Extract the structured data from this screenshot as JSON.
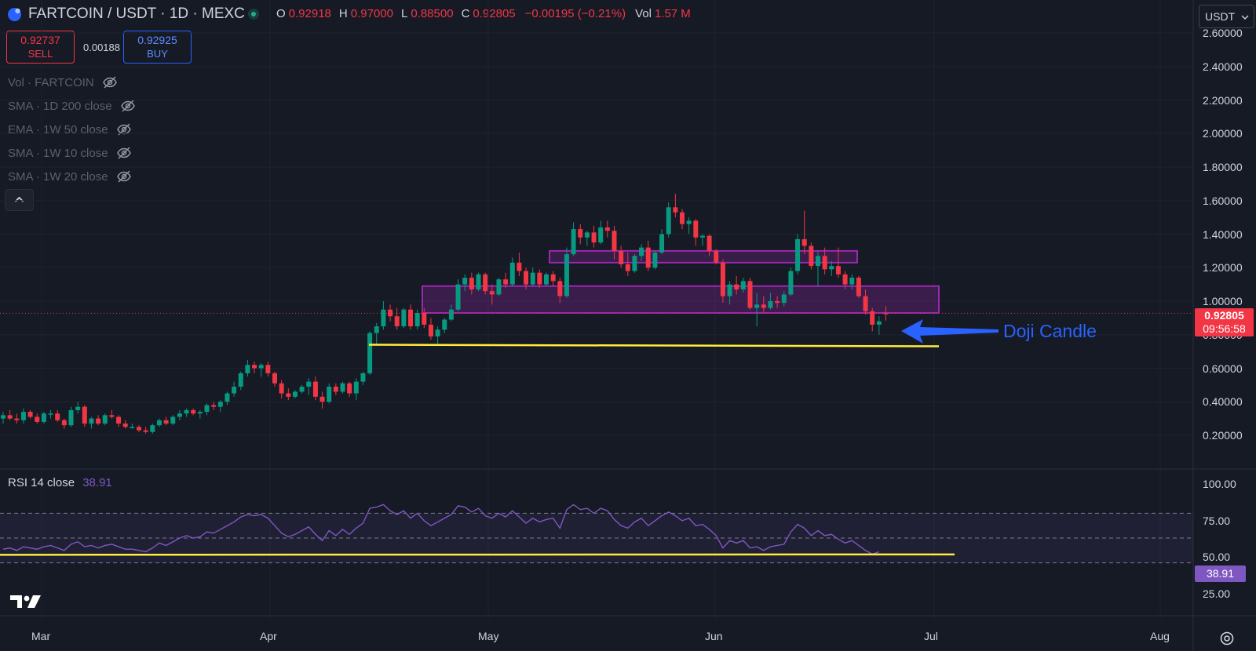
{
  "header": {
    "symbol": "FARTCOIN / USDT · 1D · MEXC",
    "ohlc": {
      "o_label": "O",
      "o": "0.92918",
      "h_label": "H",
      "h": "0.97000",
      "l_label": "L",
      "l": "0.88500",
      "c_label": "C",
      "c": "0.92805",
      "change": "−0.00195 (−0.21%)",
      "vol_label": "Vol",
      "vol": "1.57 M"
    }
  },
  "trade": {
    "sell_price": "0.92737",
    "sell_label": "SELL",
    "spread": "0.00188",
    "buy_price": "0.92925",
    "buy_label": "BUY"
  },
  "indicators": [
    {
      "label": "Vol · FARTCOIN"
    },
    {
      "label": "SMA · 1D 200 close"
    },
    {
      "label": "EMA · 1W 50 close"
    },
    {
      "label": "SMA · 1W 10 close"
    },
    {
      "label": "SMA · 1W 20 close"
    }
  ],
  "currency_selector": "USDT",
  "price_axis": [
    "2.60000",
    "2.40000",
    "2.20000",
    "2.00000",
    "1.80000",
    "1.60000",
    "1.40000",
    "1.20000",
    "1.00000",
    "0.80000",
    "0.60000",
    "0.40000",
    "0.20000"
  ],
  "current_price": {
    "value": "0.92805",
    "countdown": "09:56:58",
    "color": "#f23645"
  },
  "rsi": {
    "title": "RSI 14 close",
    "value": "38.91",
    "axis": [
      "100.00",
      "75.00",
      "50.00",
      "25.00"
    ],
    "color": "#7e57c2"
  },
  "time_axis": [
    "Mar",
    "Apr",
    "May",
    "Jun",
    "Jul",
    "Aug"
  ],
  "annotation": {
    "text": "Doji Candle",
    "color": "#2962ff"
  },
  "colors": {
    "up": "#089981",
    "down": "#f23645",
    "zone": "#9c27b0",
    "support": "#ffeb3b",
    "bg": "#161a25"
  },
  "chart_data": {
    "type": "candlestick",
    "title": "FARTCOIN / USDT · 1D · MEXC",
    "ylim": [
      0.1,
      2.65
    ],
    "candles": [
      [
        0.3,
        0.34,
        0.27,
        0.32
      ],
      [
        0.32,
        0.35,
        0.29,
        0.3
      ],
      [
        0.3,
        0.33,
        0.27,
        0.29
      ],
      [
        0.29,
        0.36,
        0.27,
        0.34
      ],
      [
        0.34,
        0.35,
        0.3,
        0.31
      ],
      [
        0.31,
        0.33,
        0.27,
        0.28
      ],
      [
        0.28,
        0.34,
        0.27,
        0.33
      ],
      [
        0.33,
        0.35,
        0.3,
        0.33
      ],
      [
        0.33,
        0.35,
        0.28,
        0.29
      ],
      [
        0.29,
        0.3,
        0.24,
        0.26
      ],
      [
        0.26,
        0.37,
        0.25,
        0.35
      ],
      [
        0.35,
        0.4,
        0.33,
        0.37
      ],
      [
        0.37,
        0.38,
        0.25,
        0.27
      ],
      [
        0.27,
        0.31,
        0.24,
        0.3
      ],
      [
        0.3,
        0.32,
        0.26,
        0.27
      ],
      [
        0.27,
        0.33,
        0.26,
        0.32
      ],
      [
        0.32,
        0.35,
        0.3,
        0.31
      ],
      [
        0.31,
        0.32,
        0.25,
        0.27
      ],
      [
        0.27,
        0.29,
        0.24,
        0.25
      ],
      [
        0.25,
        0.27,
        0.24,
        0.25
      ],
      [
        0.25,
        0.26,
        0.22,
        0.23
      ],
      [
        0.23,
        0.25,
        0.21,
        0.22
      ],
      [
        0.22,
        0.27,
        0.21,
        0.26
      ],
      [
        0.26,
        0.3,
        0.25,
        0.29
      ],
      [
        0.29,
        0.31,
        0.26,
        0.27
      ],
      [
        0.27,
        0.32,
        0.26,
        0.31
      ],
      [
        0.31,
        0.35,
        0.29,
        0.33
      ],
      [
        0.33,
        0.36,
        0.31,
        0.35
      ],
      [
        0.35,
        0.36,
        0.32,
        0.33
      ],
      [
        0.33,
        0.35,
        0.3,
        0.34
      ],
      [
        0.34,
        0.39,
        0.32,
        0.38
      ],
      [
        0.38,
        0.4,
        0.35,
        0.37
      ],
      [
        0.37,
        0.41,
        0.34,
        0.4
      ],
      [
        0.4,
        0.46,
        0.38,
        0.45
      ],
      [
        0.45,
        0.52,
        0.43,
        0.49
      ],
      [
        0.49,
        0.58,
        0.47,
        0.57
      ],
      [
        0.57,
        0.65,
        0.55,
        0.62
      ],
      [
        0.62,
        0.64,
        0.57,
        0.6
      ],
      [
        0.6,
        0.63,
        0.55,
        0.62
      ],
      [
        0.62,
        0.64,
        0.55,
        0.57
      ],
      [
        0.57,
        0.58,
        0.49,
        0.51
      ],
      [
        0.51,
        0.53,
        0.42,
        0.45
      ],
      [
        0.45,
        0.48,
        0.41,
        0.43
      ],
      [
        0.43,
        0.47,
        0.42,
        0.46
      ],
      [
        0.46,
        0.5,
        0.45,
        0.49
      ],
      [
        0.49,
        0.54,
        0.44,
        0.52
      ],
      [
        0.52,
        0.55,
        0.41,
        0.43
      ],
      [
        0.43,
        0.46,
        0.36,
        0.4
      ],
      [
        0.4,
        0.51,
        0.39,
        0.49
      ],
      [
        0.49,
        0.51,
        0.44,
        0.46
      ],
      [
        0.46,
        0.52,
        0.45,
        0.51
      ],
      [
        0.51,
        0.52,
        0.43,
        0.45
      ],
      [
        0.45,
        0.54,
        0.41,
        0.52
      ],
      [
        0.52,
        0.58,
        0.5,
        0.57
      ],
      [
        0.57,
        0.82,
        0.56,
        0.81
      ],
      [
        0.81,
        0.87,
        0.74,
        0.85
      ],
      [
        0.85,
        1.0,
        0.83,
        0.95
      ],
      [
        0.95,
        0.98,
        0.88,
        0.91
      ],
      [
        0.91,
        0.96,
        0.83,
        0.85
      ],
      [
        0.85,
        0.96,
        0.84,
        0.95
      ],
      [
        0.95,
        0.98,
        0.83,
        0.85
      ],
      [
        0.85,
        0.95,
        0.83,
        0.93
      ],
      [
        0.93,
        0.96,
        0.84,
        0.86
      ],
      [
        0.86,
        0.9,
        0.77,
        0.79
      ],
      [
        0.79,
        0.85,
        0.74,
        0.83
      ],
      [
        0.83,
        0.9,
        0.81,
        0.89
      ],
      [
        0.89,
        0.98,
        0.88,
        0.95
      ],
      [
        0.95,
        1.13,
        0.94,
        1.1
      ],
      [
        1.1,
        1.16,
        1.06,
        1.14
      ],
      [
        1.14,
        1.17,
        1.04,
        1.07
      ],
      [
        1.07,
        1.17,
        1.06,
        1.16
      ],
      [
        1.16,
        1.17,
        1.04,
        1.06
      ],
      [
        1.06,
        1.1,
        0.98,
        1.04
      ],
      [
        1.04,
        1.14,
        1.03,
        1.13
      ],
      [
        1.13,
        1.17,
        1.08,
        1.1
      ],
      [
        1.1,
        1.26,
        1.09,
        1.23
      ],
      [
        1.23,
        1.29,
        1.15,
        1.18
      ],
      [
        1.18,
        1.2,
        1.07,
        1.1
      ],
      [
        1.1,
        1.2,
        1.09,
        1.17
      ],
      [
        1.17,
        1.19,
        1.08,
        1.1
      ],
      [
        1.1,
        1.17,
        1.09,
        1.16
      ],
      [
        1.16,
        1.18,
        1.09,
        1.12
      ],
      [
        1.12,
        1.14,
        0.99,
        1.03
      ],
      [
        1.03,
        1.32,
        1.02,
        1.28
      ],
      [
        1.28,
        1.47,
        1.27,
        1.43
      ],
      [
        1.43,
        1.46,
        1.34,
        1.38
      ],
      [
        1.38,
        1.42,
        1.33,
        1.41
      ],
      [
        1.41,
        1.45,
        1.32,
        1.35
      ],
      [
        1.35,
        1.48,
        1.34,
        1.44
      ],
      [
        1.44,
        1.48,
        1.38,
        1.42
      ],
      [
        1.42,
        1.45,
        1.25,
        1.3
      ],
      [
        1.3,
        1.33,
        1.2,
        1.22
      ],
      [
        1.22,
        1.29,
        1.15,
        1.18
      ],
      [
        1.18,
        1.28,
        1.17,
        1.27
      ],
      [
        1.27,
        1.34,
        1.24,
        1.32
      ],
      [
        1.32,
        1.36,
        1.18,
        1.2
      ],
      [
        1.2,
        1.3,
        1.19,
        1.29
      ],
      [
        1.29,
        1.43,
        1.28,
        1.4
      ],
      [
        1.4,
        1.59,
        1.38,
        1.56
      ],
      [
        1.56,
        1.64,
        1.5,
        1.53
      ],
      [
        1.53,
        1.55,
        1.43,
        1.46
      ],
      [
        1.46,
        1.5,
        1.4,
        1.48
      ],
      [
        1.48,
        1.49,
        1.33,
        1.38
      ],
      [
        1.38,
        1.4,
        1.33,
        1.39
      ],
      [
        1.39,
        1.4,
        1.27,
        1.3
      ],
      [
        1.3,
        1.31,
        1.22,
        1.23
      ],
      [
        1.23,
        1.25,
        0.99,
        1.03
      ],
      [
        1.03,
        1.12,
        0.98,
        1.1
      ],
      [
        1.1,
        1.15,
        1.04,
        1.07
      ],
      [
        1.07,
        1.14,
        1.05,
        1.12
      ],
      [
        1.12,
        1.14,
        0.95,
        0.96
      ],
      [
        0.96,
        1.05,
        0.85,
        0.98
      ],
      [
        0.98,
        1.03,
        0.93,
        0.96
      ],
      [
        0.96,
        1.05,
        0.95,
        1.0
      ],
      [
        1.0,
        1.03,
        0.96,
        0.99
      ],
      [
        0.99,
        1.06,
        0.97,
        1.04
      ],
      [
        1.04,
        1.2,
        1.03,
        1.18
      ],
      [
        1.18,
        1.4,
        1.16,
        1.37
      ],
      [
        1.37,
        1.54,
        1.28,
        1.33
      ],
      [
        1.33,
        1.35,
        1.19,
        1.21
      ],
      [
        1.21,
        1.3,
        1.09,
        1.27
      ],
      [
        1.27,
        1.32,
        1.16,
        1.19
      ],
      [
        1.19,
        1.24,
        1.15,
        1.21
      ],
      [
        1.21,
        1.32,
        1.14,
        1.16
      ],
      [
        1.16,
        1.18,
        1.07,
        1.1
      ],
      [
        1.1,
        1.16,
        1.07,
        1.14
      ],
      [
        1.14,
        1.15,
        1.02,
        1.03
      ],
      [
        1.03,
        1.07,
        0.92,
        0.94
      ],
      [
        0.94,
        0.96,
        0.82,
        0.86
      ],
      [
        0.86,
        0.91,
        0.8,
        0.88
      ],
      [
        0.929,
        0.97,
        0.885,
        0.928
      ]
    ],
    "support_line": 0.745,
    "zones": [
      [
        0.93,
        1.09
      ],
      [
        1.23,
        1.3
      ]
    ],
    "rsi_values": [
      41,
      42,
      40,
      43,
      42,
      41,
      43,
      44,
      42,
      40,
      45,
      47,
      43,
      44,
      42,
      44,
      45,
      43,
      41,
      41,
      40,
      39,
      42,
      46,
      44,
      47,
      50,
      52,
      50,
      51,
      55,
      54,
      57,
      60,
      63,
      67,
      69,
      68,
      69,
      66,
      60,
      54,
      51,
      53,
      56,
      59,
      53,
      48,
      56,
      52,
      57,
      53,
      58,
      62,
      74,
      75,
      77,
      72,
      69,
      72,
      66,
      70,
      64,
      60,
      63,
      66,
      69,
      76,
      75,
      71,
      74,
      68,
      66,
      70,
      67,
      72,
      67,
      62,
      66,
      63,
      65,
      66,
      58,
      73,
      77,
      73,
      74,
      70,
      74,
      72,
      65,
      60,
      58,
      63,
      66,
      60,
      64,
      68,
      71,
      68,
      64,
      66,
      60,
      61,
      57,
      52,
      42,
      48,
      46,
      48,
      42,
      43,
      40,
      43,
      44,
      45,
      55,
      61,
      58,
      52,
      56,
      52,
      53,
      49,
      46,
      48,
      44,
      40,
      37,
      38.91
    ]
  }
}
